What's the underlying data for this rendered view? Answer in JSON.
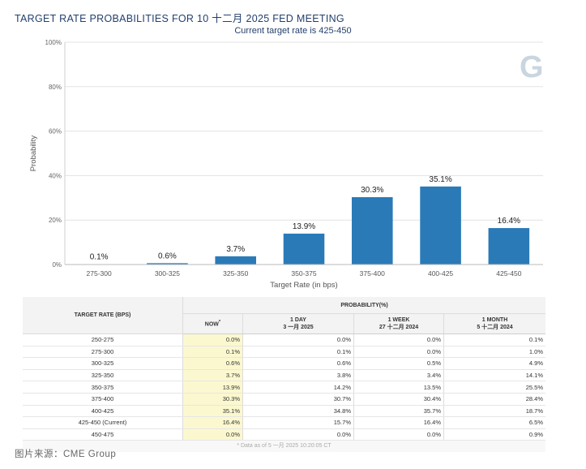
{
  "header": {
    "title": "TARGET RATE PROBABILITIES FOR 10 十二月 2025 FED MEETING",
    "subtitle": "Current target rate is 425-450"
  },
  "chart_data": {
    "type": "bar",
    "categories": [
      "275-300",
      "300-325",
      "325-350",
      "350-375",
      "375-400",
      "400-425",
      "425-450"
    ],
    "values": [
      0.1,
      0.6,
      3.7,
      13.9,
      30.3,
      35.1,
      16.4
    ],
    "value_labels": [
      "0.1%",
      "0.6%",
      "3.7%",
      "13.9%",
      "30.3%",
      "35.1%",
      "16.4%"
    ],
    "xlabel": "Target Rate (in bps)",
    "ylabel": "Probability",
    "ylim": [
      0,
      100
    ],
    "y_ticks": [
      0,
      20,
      40,
      60,
      80,
      100
    ],
    "y_tick_labels": [
      "0%",
      "20%",
      "40%",
      "60%",
      "80%",
      "100%"
    ],
    "bar_color": "#2a7ab8",
    "grid": true
  },
  "table": {
    "group_header": "PROBABILITY(%)",
    "target_rate_header": "TARGET RATE (BPS)",
    "columns": [
      {
        "line1": "NOW",
        "line2": ""
      },
      {
        "line1": "1 DAY",
        "line2": "3 一月 2025"
      },
      {
        "line1": "1 WEEK",
        "line2": "27 十二月 2024"
      },
      {
        "line1": "1 MONTH",
        "line2": "5 十二月 2024"
      }
    ],
    "now_marker": "*",
    "rows": [
      {
        "rate": "250-275",
        "now": "0.0%",
        "day": "0.0%",
        "week": "0.0%",
        "month": "0.1%"
      },
      {
        "rate": "275-300",
        "now": "0.1%",
        "day": "0.1%",
        "week": "0.0%",
        "month": "1.0%"
      },
      {
        "rate": "300-325",
        "now": "0.6%",
        "day": "0.6%",
        "week": "0.5%",
        "month": "4.9%"
      },
      {
        "rate": "325-350",
        "now": "3.7%",
        "day": "3.8%",
        "week": "3.4%",
        "month": "14.1%"
      },
      {
        "rate": "350-375",
        "now": "13.9%",
        "day": "14.2%",
        "week": "13.5%",
        "month": "25.5%"
      },
      {
        "rate": "375-400",
        "now": "30.3%",
        "day": "30.7%",
        "week": "30.4%",
        "month": "28.4%"
      },
      {
        "rate": "400-425",
        "now": "35.1%",
        "day": "34.8%",
        "week": "35.7%",
        "month": "18.7%"
      },
      {
        "rate": "425-450 (Current)",
        "now": "16.4%",
        "day": "15.7%",
        "week": "16.4%",
        "month": "6.5%"
      },
      {
        "rate": "450-475",
        "now": "0.0%",
        "day": "0.0%",
        "week": "0.0%",
        "month": "0.9%"
      }
    ],
    "footnote": "* Data as of 5 一月 2025 10:20:05 CT"
  },
  "source": "图片来源：CME Group",
  "watermark": "G"
}
